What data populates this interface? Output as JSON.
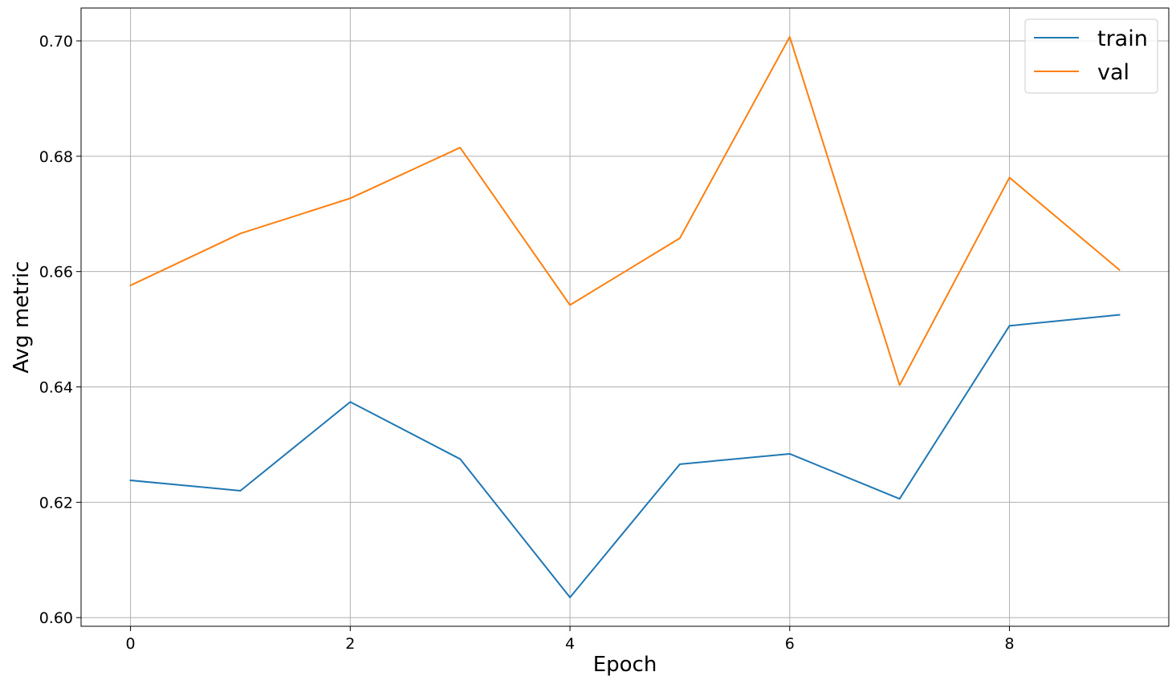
{
  "chart_data": {
    "type": "line",
    "title": "",
    "xlabel": "Epoch",
    "ylabel": "Avg metric",
    "x": [
      0,
      1,
      2,
      3,
      4,
      5,
      6,
      7,
      8,
      9
    ],
    "series": [
      {
        "name": "train",
        "color": "#1f77b4",
        "values": [
          0.6238,
          0.622,
          0.6374,
          0.6275,
          0.6035,
          0.6266,
          0.6284,
          0.6206,
          0.6506,
          0.6525
        ]
      },
      {
        "name": "val",
        "color": "#ff7f0e",
        "values": [
          0.6576,
          0.6666,
          0.6727,
          0.6815,
          0.6542,
          0.6658,
          0.7007,
          0.6403,
          0.6763,
          0.6603
        ]
      }
    ],
    "xlim": [
      -0.45,
      9.45
    ],
    "ylim": [
      0.5985,
      0.7057
    ],
    "xticks": [
      0,
      2,
      4,
      6,
      8
    ],
    "xtick_labels": [
      "0",
      "2",
      "4",
      "6",
      "8"
    ],
    "yticks": [
      0.6,
      0.62,
      0.64,
      0.66,
      0.68,
      0.7
    ],
    "ytick_labels": [
      "0.60",
      "0.62",
      "0.64",
      "0.66",
      "0.68",
      "0.70"
    ],
    "grid": true,
    "legend_position": "top-right"
  }
}
